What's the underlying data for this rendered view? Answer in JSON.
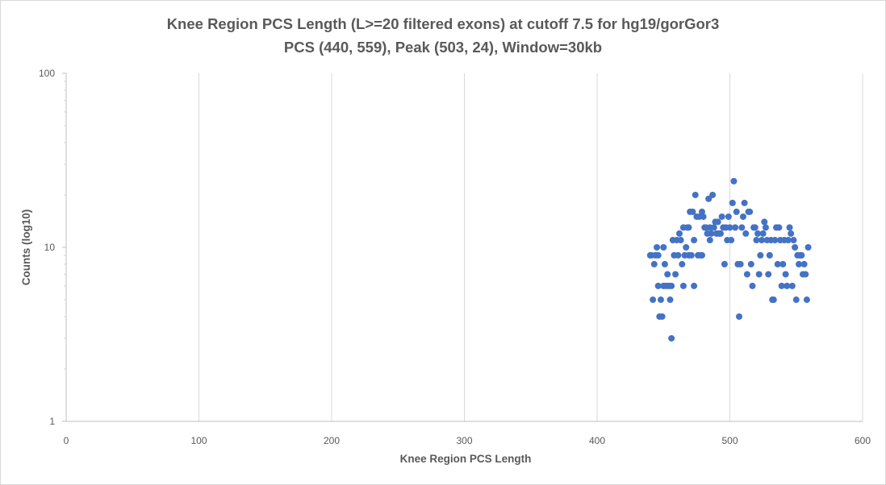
{
  "chart_data": {
    "type": "scatter",
    "title": "Knee Region PCS Length (L>=20 filtered exons) at cutoff 7.5 for hg19/gorGor3",
    "subtitle": "PCS (440, 559), Peak (503, 24), Window=30kb",
    "xlabel": "Knee Region PCS Length",
    "ylabel": "Counts (log10)",
    "xlim": [
      0,
      600
    ],
    "ylim": [
      1,
      100
    ],
    "y_scale": "log10",
    "x_ticks": [
      "0",
      "100",
      "200",
      "300",
      "400",
      "500",
      "600"
    ],
    "y_ticks": [
      "1",
      "10",
      "100"
    ],
    "grid": "vertical major gridlines",
    "legend": "none",
    "marker_color": "#4472c4",
    "series": [
      {
        "points": [
          [
            440,
            9
          ],
          [
            441,
            9
          ],
          [
            442,
            5
          ],
          [
            443,
            8
          ],
          [
            444,
            9
          ],
          [
            445,
            10
          ],
          [
            446,
            9
          ],
          [
            446,
            6
          ],
          [
            447,
            4
          ],
          [
            448,
            5
          ],
          [
            449,
            4
          ],
          [
            450,
            6
          ],
          [
            450,
            10
          ],
          [
            451,
            8
          ],
          [
            452,
            6
          ],
          [
            453,
            7
          ],
          [
            454,
            6
          ],
          [
            455,
            5
          ],
          [
            456,
            6
          ],
          [
            456,
            3
          ],
          [
            457,
            11
          ],
          [
            458,
            9
          ],
          [
            459,
            7
          ],
          [
            460,
            11
          ],
          [
            461,
            9
          ],
          [
            462,
            12
          ],
          [
            463,
            11
          ],
          [
            464,
            8
          ],
          [
            465,
            13
          ],
          [
            465,
            6
          ],
          [
            466,
            9
          ],
          [
            467,
            10
          ],
          [
            468,
            13
          ],
          [
            469,
            13
          ],
          [
            469,
            9
          ],
          [
            470,
            16
          ],
          [
            471,
            9
          ],
          [
            472,
            16
          ],
          [
            473,
            6
          ],
          [
            473,
            11
          ],
          [
            474,
            20
          ],
          [
            475,
            15
          ],
          [
            476,
            9
          ],
          [
            477,
            15
          ],
          [
            478,
            9
          ],
          [
            479,
            16
          ],
          [
            479,
            9
          ],
          [
            480,
            15
          ],
          [
            481,
            13
          ],
          [
            482,
            13
          ],
          [
            483,
            12
          ],
          [
            484,
            19
          ],
          [
            485,
            11
          ],
          [
            485,
            13
          ],
          [
            486,
            12
          ],
          [
            487,
            20
          ],
          [
            488,
            13
          ],
          [
            489,
            14
          ],
          [
            490,
            12
          ],
          [
            491,
            14
          ],
          [
            492,
            12
          ],
          [
            493,
            12
          ],
          [
            494,
            15
          ],
          [
            495,
            13
          ],
          [
            496,
            8
          ],
          [
            497,
            13
          ],
          [
            498,
            11
          ],
          [
            499,
            15
          ],
          [
            500,
            13
          ],
          [
            501,
            11
          ],
          [
            502,
            18
          ],
          [
            503,
            24
          ],
          [
            504,
            13
          ],
          [
            505,
            16
          ],
          [
            506,
            8
          ],
          [
            507,
            4
          ],
          [
            508,
            8
          ],
          [
            509,
            13
          ],
          [
            510,
            15
          ],
          [
            511,
            18
          ],
          [
            512,
            12
          ],
          [
            513,
            7
          ],
          [
            514,
            16
          ],
          [
            515,
            16
          ],
          [
            516,
            8
          ],
          [
            517,
            6
          ],
          [
            518,
            13
          ],
          [
            519,
            13
          ],
          [
            520,
            11
          ],
          [
            521,
            12
          ],
          [
            522,
            7
          ],
          [
            523,
            9
          ],
          [
            524,
            11
          ],
          [
            525,
            12
          ],
          [
            526,
            14
          ],
          [
            527,
            13
          ],
          [
            528,
            11
          ],
          [
            529,
            7
          ],
          [
            530,
            9
          ],
          [
            531,
            11
          ],
          [
            532,
            5
          ],
          [
            533,
            5
          ],
          [
            534,
            11
          ],
          [
            535,
            13
          ],
          [
            536,
            8
          ],
          [
            537,
            13
          ],
          [
            538,
            11
          ],
          [
            539,
            6
          ],
          [
            540,
            8
          ],
          [
            541,
            11
          ],
          [
            542,
            7
          ],
          [
            543,
            6
          ],
          [
            544,
            11
          ],
          [
            545,
            13
          ],
          [
            546,
            12
          ],
          [
            547,
            6
          ],
          [
            548,
            11
          ],
          [
            549,
            10
          ],
          [
            550,
            5
          ],
          [
            551,
            9
          ],
          [
            552,
            8
          ],
          [
            553,
            9
          ],
          [
            554,
            9
          ],
          [
            555,
            7
          ],
          [
            556,
            8
          ],
          [
            557,
            7
          ],
          [
            558,
            5
          ],
          [
            559,
            10
          ]
        ]
      }
    ]
  }
}
